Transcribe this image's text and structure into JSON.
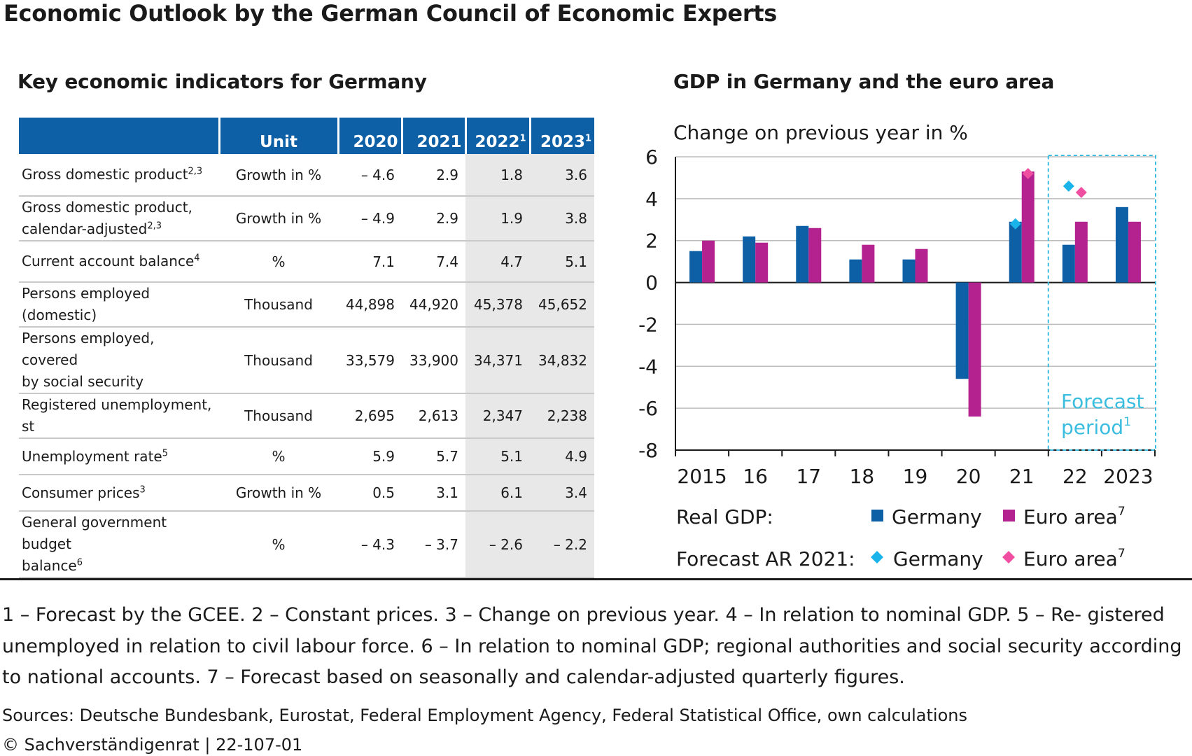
{
  "title": "Economic Outlook by the German Council of Economic Experts",
  "table": {
    "title": "Key economic indicators for Germany",
    "headers": {
      "unit": "Unit",
      "years": [
        {
          "year": "2020",
          "note": ""
        },
        {
          "year": "2021",
          "note": ""
        },
        {
          "year": "2022",
          "note": "1"
        },
        {
          "year": "2023",
          "note": "1"
        }
      ]
    },
    "rows": [
      {
        "label_line1": "Gross domestic product",
        "label_sup1": "2,3",
        "label_line2": "",
        "label_sup2": "",
        "unit": "Growth in %",
        "values": [
          "– 4.6",
          "2.9",
          "1.8",
          "3.6"
        ]
      },
      {
        "label_line1": "Gross domestic product,",
        "label_sup1": "",
        "label_line2": "calendar-adjusted",
        "label_sup2": "2,3",
        "unit": "Growth in %",
        "values": [
          "– 4.9",
          "2.9",
          "1.9",
          "3.8"
        ]
      },
      {
        "label_line1": "Current account balance",
        "label_sup1": "4",
        "label_line2": "",
        "label_sup2": "",
        "unit": "%",
        "values": [
          "7.1",
          "7.4",
          "4.7",
          "5.1"
        ]
      },
      {
        "label_line1": "Persons employed",
        "label_sup1": "",
        "label_line2": "(domestic)",
        "label_sup2": "",
        "unit": "Thousand",
        "values": [
          "44,898",
          "44,920",
          "45,378",
          "45,652"
        ]
      },
      {
        "label_line1": "Persons employed, covered",
        "label_sup1": "",
        "label_line2": "by social security",
        "label_sup2": "",
        "unit": "Thousand",
        "values": [
          "33,579",
          "33,900",
          "34,371",
          "34,832"
        ]
      },
      {
        "label_line1": "Registered unemployment, st",
        "label_sup1": "",
        "label_line2": "",
        "label_sup2": "",
        "unit": "Thousand",
        "values": [
          "2,695",
          "2,613",
          "2,347",
          "2,238"
        ]
      },
      {
        "label_line1": "Unemployment rate",
        "label_sup1": "5",
        "label_line2": "",
        "label_sup2": "",
        "unit": "%",
        "values": [
          "5.9",
          "5.7",
          "5.1",
          "4.9"
        ]
      },
      {
        "label_line1": "Consumer prices",
        "label_sup1": "3",
        "label_line2": "",
        "label_sup2": "",
        "unit": "Growth in %",
        "values": [
          "0.5",
          "3.1",
          "6.1",
          "3.4"
        ]
      },
      {
        "label_line1": "General government budget",
        "label_sup1": "",
        "label_line2": "balance",
        "label_sup2": "6",
        "unit": "%",
        "values": [
          "– 4.3",
          "– 3.7",
          "– 2.6",
          "– 2.2"
        ]
      }
    ]
  },
  "chart_data": {
    "type": "bar",
    "title": "GDP in Germany and the euro area",
    "ylabel": "Change on previous year in %",
    "categories": [
      "2015",
      "16",
      "17",
      "18",
      "19",
      "20",
      "21",
      "22",
      "2023"
    ],
    "ylim": [
      -8,
      6
    ],
    "yticks": [
      "6",
      "4",
      "2",
      "0",
      "-2",
      "-4",
      "-6",
      "-8"
    ],
    "grid": true,
    "series": [
      {
        "name": "Germany",
        "color": "#0d5fa6",
        "values": [
          1.5,
          2.2,
          2.7,
          1.1,
          1.1,
          -4.6,
          2.9,
          1.8,
          3.6
        ]
      },
      {
        "name": "Euro area",
        "color": "#b3228e",
        "values": [
          2.0,
          1.9,
          2.6,
          1.8,
          1.6,
          -6.4,
          5.3,
          2.9,
          2.9
        ]
      }
    ],
    "forecast_markers": [
      {
        "name": "Germany",
        "color": "#1ab4ea",
        "points": [
          {
            "x": "21",
            "y": 2.8
          },
          {
            "x": "22",
            "y": 4.6
          }
        ]
      },
      {
        "name": "Euro area",
        "color": "#f04ea0",
        "points": [
          {
            "x": "21",
            "y": 5.2
          },
          {
            "x": "22",
            "y": 4.3
          }
        ]
      }
    ],
    "forecast_period": {
      "label_line1": "Forecast",
      "label_line2": "period",
      "note": "1",
      "start_after": "21",
      "color": "#3bbde0"
    },
    "legend": {
      "real_label": "Real GDP:",
      "forecast_label": "Forecast AR 2021:",
      "germany": "Germany",
      "euro_area": "Euro area",
      "euro_note": "7"
    }
  },
  "footnotes": "1 – Forecast by the GCEE.  2 – Constant prices.  3 – Change on previous year.  4 – In relation to nominal GDP.  5 – Re- gistered unemployed in relation to civil labour force.  6 – In relation to nominal GDP; regional authorities and social security according to national accounts.  7 – Forecast based on seasonally and calendar-adjusted quarterly figures.",
  "sources": "Sources: Deutsche Bundesbank, Eurostat, Federal Employment Agency, Federal Statistical Office, own calculations",
  "copyright": "© Sachverständigenrat | 22-107-01"
}
